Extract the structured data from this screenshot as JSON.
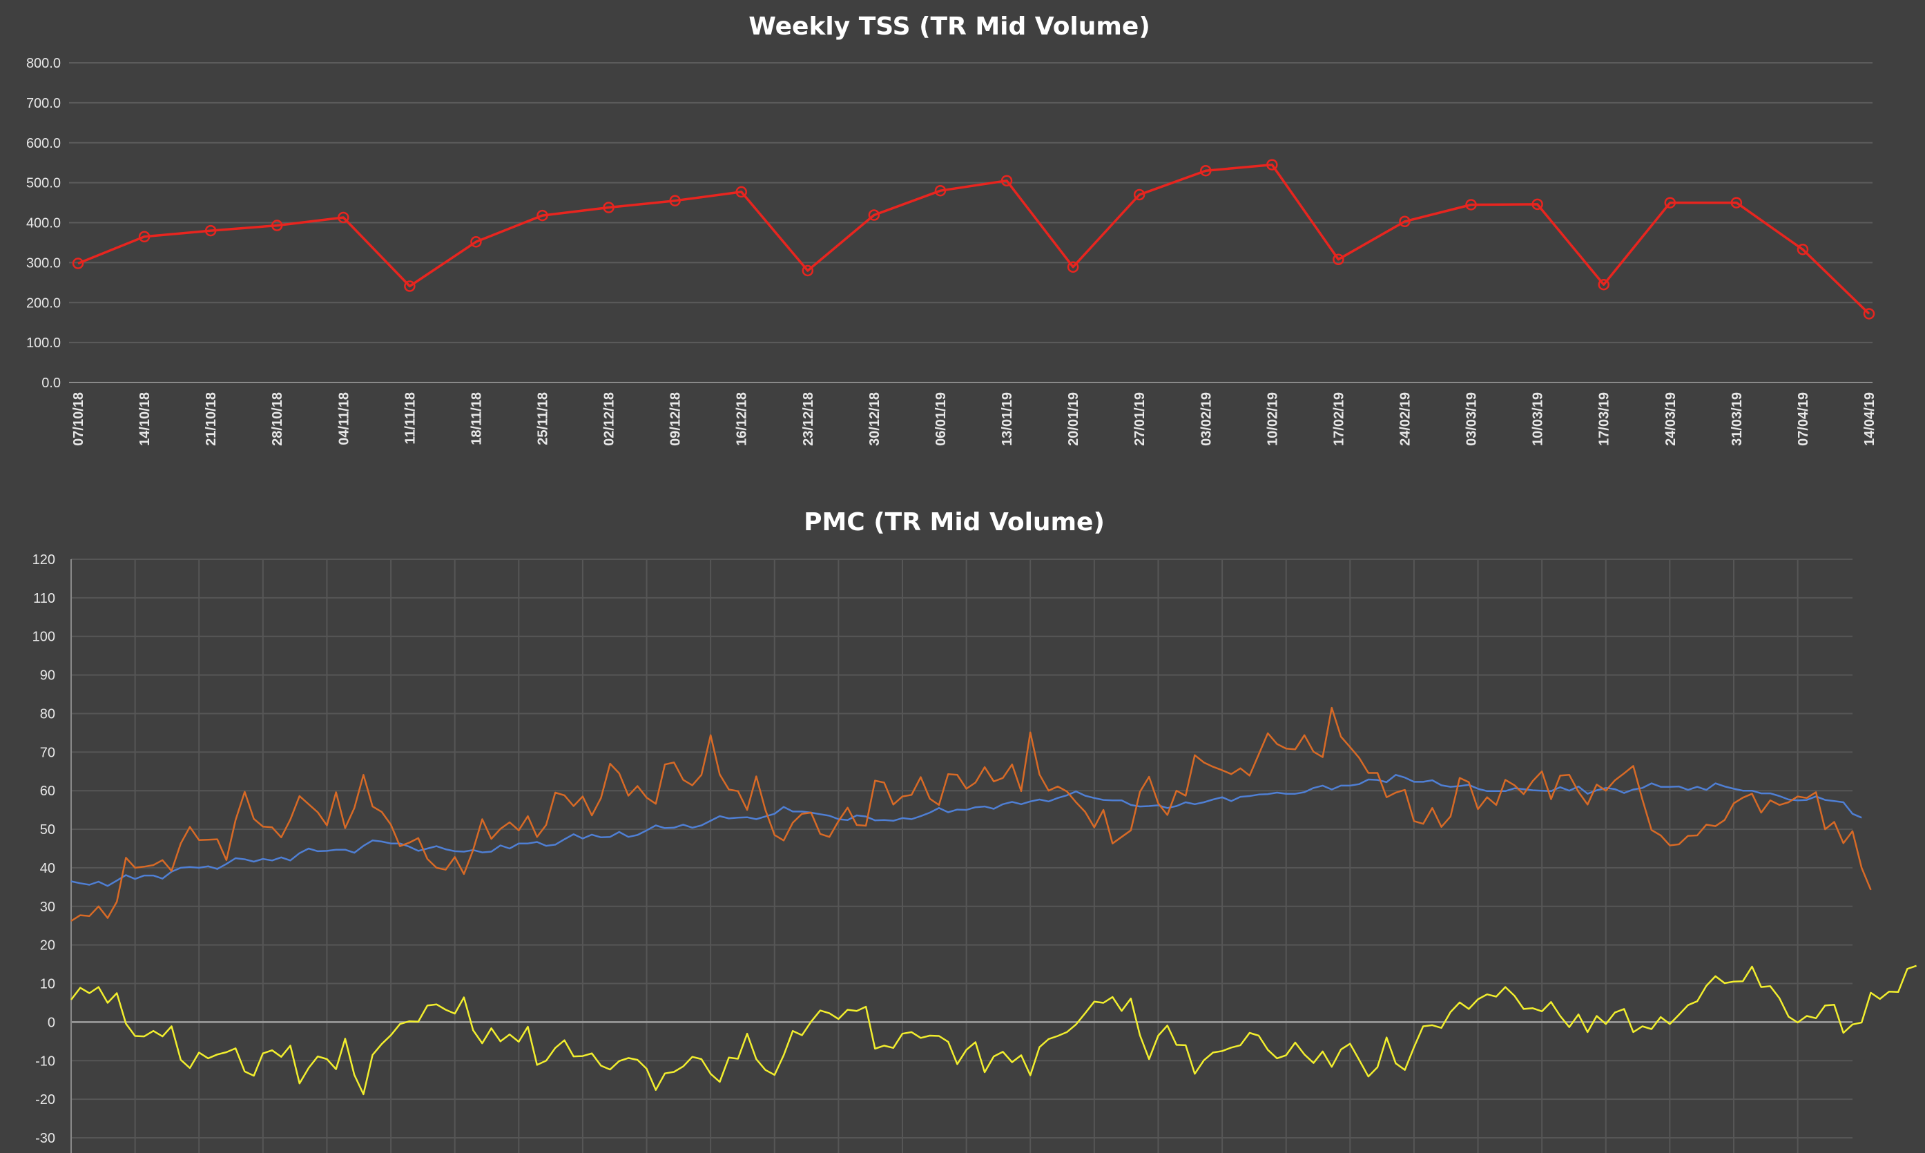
{
  "chart_data": [
    {
      "type": "line",
      "title": "Weekly TSS (TR Mid Volume)",
      "xlabel": "",
      "ylabel": "",
      "ylim": [
        0,
        800
      ],
      "yticks": [
        "0.0",
        "100.0",
        "200.0",
        "300.0",
        "400.0",
        "500.0",
        "600.0",
        "700.0",
        "800.0"
      ],
      "grid": true,
      "legend": "none",
      "categories": [
        "07/10/18",
        "14/10/18",
        "21/10/18",
        "28/10/18",
        "04/11/18",
        "11/11/18",
        "18/11/18",
        "25/11/18",
        "02/12/18",
        "09/12/18",
        "16/12/18",
        "23/12/18",
        "30/12/18",
        "06/01/19",
        "13/01/19",
        "20/01/19",
        "27/01/19",
        "03/02/19",
        "10/02/19",
        "17/02/19",
        "24/02/19",
        "03/03/19",
        "10/03/19",
        "17/03/19",
        "24/03/19",
        "31/03/19",
        "07/04/19",
        "14/04/19"
      ],
      "series": [
        {
          "color": "#e8251f",
          "values": [
            298,
            365,
            380,
            393,
            413,
            241,
            352,
            418,
            438,
            455,
            477,
            280,
            419,
            480,
            505,
            289,
            470,
            530,
            545,
            308,
            403,
            445,
            446,
            245,
            450,
            450,
            333,
            172
          ]
        }
      ]
    },
    {
      "type": "line",
      "title": "PMC (TR Mid Volume)",
      "xlabel": "",
      "ylabel": "",
      "ylim": [
        -30,
        120
      ],
      "yticks": [
        "-30",
        "-20",
        "-10",
        "0",
        "10",
        "20",
        "30",
        "40",
        "50",
        "60",
        "70",
        "80",
        "90",
        "100",
        "110",
        "120"
      ],
      "grid": true,
      "legend": "none",
      "x_days": 196,
      "series": [
        {
          "color": "#4f7fd4",
          "values": [
            36.5,
            36.0,
            35.6,
            36.4,
            35.3,
            36.7,
            38.1,
            37.1,
            38.0,
            38.0,
            37.2,
            39.0,
            40.0,
            40.2,
            40.0,
            40.4,
            39.7,
            41.0,
            42.5,
            42.2,
            41.6,
            42.3,
            41.9,
            42.7,
            41.9,
            43.8,
            45.0,
            44.3,
            44.4,
            44.7,
            44.7,
            43.9,
            45.7,
            47.1,
            46.8,
            46.3,
            46.3,
            45.5,
            44.4,
            45.0,
            45.6,
            44.8,
            44.3,
            44.2,
            44.6,
            44.0,
            44.2,
            45.8,
            45.0,
            46.3,
            46.3,
            46.7,
            45.7,
            46.0,
            47.4,
            48.7,
            47.6,
            48.6,
            47.9,
            48.0,
            49.3,
            48.0,
            48.5,
            49.7,
            51.0,
            50.3,
            50.4,
            51.2,
            50.4,
            51.0,
            52.2,
            53.4,
            52.8,
            53.0,
            53.1,
            52.6,
            53.3,
            54.0,
            55.8,
            54.6,
            54.6,
            54.3,
            53.9,
            53.5,
            52.6,
            52.4,
            53.6,
            53.3,
            52.3,
            52.4,
            52.2,
            52.9,
            52.6,
            53.4,
            54.3,
            55.5,
            54.4,
            55.1,
            55.0,
            55.7,
            55.9,
            55.3,
            56.5,
            57.1,
            56.5,
            57.2,
            57.7,
            57.2,
            58.1,
            58.8,
            59.8,
            58.7,
            58.1,
            57.6,
            57.5,
            57.5,
            56.3,
            55.9,
            56.0,
            56.2,
            55.5,
            56.0,
            57.0,
            56.5,
            57.0,
            57.7,
            58.3,
            57.3,
            58.4,
            58.6,
            59.0,
            59.1,
            59.5,
            59.2,
            59.2,
            59.6,
            60.7,
            61.3,
            60.3,
            61.3,
            61.3,
            61.7,
            62.9,
            62.8,
            62.2,
            64.1,
            63.4,
            62.3,
            62.3,
            62.7,
            61.4,
            61.0,
            61.2,
            61.5,
            60.5,
            59.9,
            59.9,
            59.9,
            60.6,
            60.4,
            60.1,
            60.0,
            59.9,
            60.9,
            60.0,
            61.1,
            59.2,
            60.1,
            60.7,
            60.4,
            59.4,
            60.3,
            60.7,
            61.9,
            61.0,
            61.0,
            61.1,
            60.2,
            61.0,
            60.2,
            61.9,
            61.1,
            60.5,
            60.0,
            60.0,
            59.3,
            59.3,
            58.6,
            57.7,
            57.5,
            57.6,
            58.5,
            57.6,
            57.3,
            57.0,
            54.0,
            53.0
          ]
        },
        {
          "color": "#d86a26",
          "values": [
            26.2,
            27.7,
            27.5,
            30.0,
            27.0,
            31.2,
            42.6,
            40.0,
            40.3,
            40.7,
            42.0,
            39.2,
            46.3,
            50.6,
            47.2,
            47.3,
            47.4,
            42.0,
            52.4,
            59.7,
            52.7,
            50.7,
            50.5,
            47.9,
            52.5,
            58.6,
            56.5,
            54.4,
            51.0,
            59.6,
            50.3,
            55.5,
            64.1,
            55.9,
            54.5,
            51.2,
            45.6,
            46.5,
            47.7,
            42.3,
            40.0,
            39.5,
            42.8,
            38.4,
            44.6,
            52.6,
            47.5,
            50.1,
            51.8,
            49.7,
            53.4,
            48.0,
            51.1,
            59.5,
            58.8,
            56.0,
            58.5,
            53.6,
            58.1,
            67.0,
            64.5,
            58.7,
            61.2,
            58.2,
            56.6,
            66.8,
            67.3,
            62.8,
            61.4,
            64.1,
            74.4,
            64.2,
            60.3,
            59.9,
            55.0,
            63.7,
            55.0,
            48.5,
            47.1,
            51.7,
            54.0,
            54.3,
            48.8,
            48.0,
            52.1,
            55.6,
            51.1,
            50.9,
            62.6,
            62.1,
            56.4,
            58.5,
            58.9,
            63.5,
            57.9,
            56.3,
            64.3,
            64.1,
            60.5,
            62.1,
            66.1,
            62.4,
            63.3,
            66.8,
            59.9,
            75.1,
            64.2,
            60.0,
            61.1,
            59.8,
            57.0,
            54.5,
            50.5,
            55.0,
            46.3,
            48.0,
            49.7,
            59.7,
            63.6,
            56.7,
            53.7,
            60.0,
            58.7,
            69.2,
            67.3,
            66.2,
            65.3,
            64.3,
            65.8,
            63.9,
            69.4,
            74.9,
            72.1,
            70.9,
            70.7,
            74.4,
            70.1,
            68.7,
            81.5,
            74.0,
            71.3,
            68.5,
            64.6,
            64.6,
            58.3,
            59.5,
            60.2,
            52.1,
            51.4,
            55.5,
            50.6,
            53.3,
            63.3,
            62.2,
            55.2,
            58.3,
            56.3,
            62.8,
            61.4,
            59.1,
            62.5,
            65.0,
            57.8,
            63.9,
            64.1,
            59.7,
            56.4,
            61.6,
            60.0,
            62.7,
            64.5,
            66.4,
            57.7,
            49.8,
            48.4,
            45.8,
            46.1,
            48.3,
            48.4,
            51.2,
            50.8,
            52.4,
            56.7,
            58.2,
            59.2,
            54.3,
            57.5,
            56.3,
            57.0,
            58.5,
            58.1,
            59.6,
            50.0,
            51.9,
            46.4,
            49.5,
            40.0,
            34.3
          ]
        },
        {
          "color": "#f2ee2e",
          "values": [
            5.8,
            8.9,
            7.5,
            9.1,
            5.0,
            7.5,
            -0.4,
            -3.6,
            -3.7,
            -2.3,
            -3.7,
            -1.1,
            -9.8,
            -11.9,
            -7.9,
            -9.4,
            -8.4,
            -7.8,
            -6.8,
            -12.8,
            -13.9,
            -8.1,
            -7.3,
            -9.0,
            -6.1,
            -15.9,
            -11.9,
            -8.9,
            -9.6,
            -12.2,
            -4.3,
            -13.7,
            -18.7,
            -8.5,
            -5.7,
            -3.4,
            -0.5,
            0.2,
            0.1,
            4.3,
            4.6,
            3.2,
            2.2,
            6.4,
            -2.1,
            -5.5,
            -1.6,
            -5.0,
            -3.2,
            -5.1,
            -1.2,
            -11.1,
            -10.0,
            -6.7,
            -4.7,
            -8.9,
            -8.8,
            -8.1,
            -11.3,
            -12.3,
            -10.1,
            -9.3,
            -9.8,
            -12.1,
            -17.6,
            -13.3,
            -12.9,
            -11.5,
            -9.0,
            -9.6,
            -13.4,
            -15.5,
            -9.2,
            -9.5,
            -3.0,
            -9.6,
            -12.4,
            -13.7,
            -8.6,
            -2.3,
            -3.4,
            0.1,
            3.0,
            2.3,
            0.8,
            3.2,
            2.9,
            4.0,
            -6.9,
            -6.1,
            -6.7,
            -3.0,
            -2.6,
            -4.1,
            -3.5,
            -3.6,
            -5.1,
            -10.9,
            -7.2,
            -5.2,
            -13.0,
            -8.9,
            -7.7,
            -10.4,
            -8.6,
            -13.8,
            -6.5,
            -4.4,
            -3.6,
            -2.6,
            -0.6,
            2.3,
            5.3,
            5.0,
            6.5,
            2.9,
            6.1,
            -3.4,
            -9.6,
            -3.5,
            -0.9,
            -5.9,
            -6.0,
            -13.4,
            -9.9,
            -7.9,
            -7.5,
            -6.6,
            -6.0,
            -2.8,
            -3.5,
            -7.2,
            -9.4,
            -8.6,
            -5.3,
            -8.4,
            -10.6,
            -7.6,
            -11.6,
            -7.1,
            -5.6,
            -9.8,
            -14.1,
            -11.7,
            -4.0,
            -10.7,
            -12.4,
            -6.5,
            -1.1,
            -0.8,
            -1.5,
            2.6,
            5.1,
            3.4,
            5.9,
            7.2,
            6.6,
            9.1,
            6.8,
            3.4,
            3.6,
            2.8,
            5.2,
            1.6,
            -1.3,
            2.0,
            -2.6,
            1.6,
            -0.5,
            2.5,
            3.4,
            -2.6,
            -1.1,
            -1.8,
            1.3,
            -0.5,
            1.9,
            4.4,
            5.4,
            9.4,
            11.9,
            10.1,
            10.5,
            10.6,
            14.4,
            9.1,
            9.3,
            6.2,
            1.4,
            -0.1,
            1.6,
            1.0,
            4.3,
            4.5,
            -2.8,
            -0.6,
            -0.1,
            7.6,
            6.0,
            7.9,
            7.8,
            13.8,
            14.6
          ]
        }
      ]
    }
  ]
}
